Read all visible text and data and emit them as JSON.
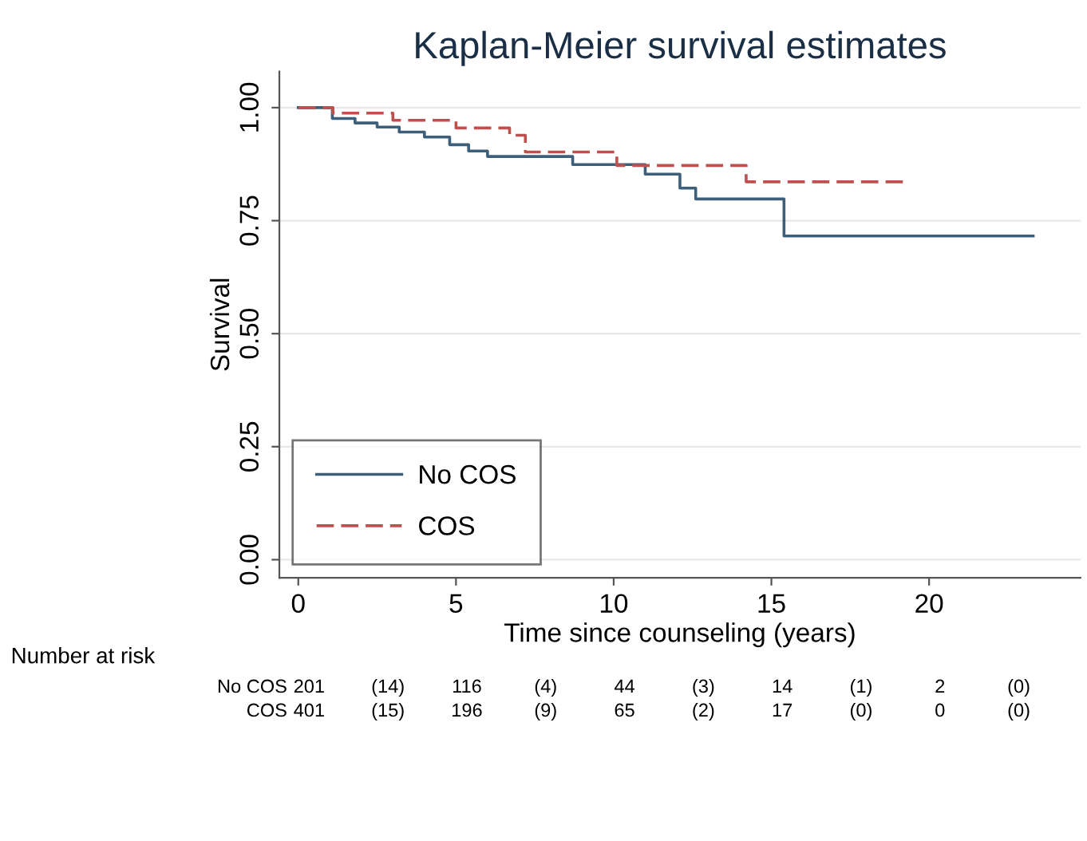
{
  "chart_data": {
    "type": "step",
    "title": "Kaplan-Meier survival estimates",
    "xlabel": "Time since counseling (years)",
    "ylabel": "Survival",
    "xlim": [
      -0.6,
      24.8
    ],
    "xticks": [
      0,
      5,
      10,
      15,
      20
    ],
    "ylim": [
      -0.04,
      1.08
    ],
    "yticks": [
      {
        "value": 0,
        "label": "0.00"
      },
      {
        "value": 0.25,
        "label": "0.25"
      },
      {
        "value": 0.5,
        "label": "0.50"
      },
      {
        "value": 0.75,
        "label": "0.75"
      },
      {
        "value": 1,
        "label": "1.00"
      }
    ],
    "grid": "y",
    "legend": "bottom left",
    "series": [
      {
        "name": "No COS",
        "color": "#3e5f7a",
        "line_style": "solid",
        "x": [
          0,
          1.08,
          1.8,
          2.5,
          3.2,
          4.0,
          4.8,
          5.4,
          6.0,
          8.7,
          11.0,
          12.1,
          12.6,
          15.4,
          23.3
        ],
        "values": [
          1,
          0.976,
          0.966,
          0.957,
          0.946,
          0.935,
          0.918,
          0.904,
          0.892,
          0.874,
          0.853,
          0.822,
          0.798,
          0.716,
          0.716
        ]
      },
      {
        "name": "COS",
        "color": "#c0504d",
        "line_style": "dashed",
        "x": [
          0,
          1.1,
          3.0,
          5.0,
          6.7,
          7.2,
          10.1,
          14.2,
          19.3
        ],
        "values": [
          1,
          0.988,
          0.972,
          0.955,
          0.939,
          0.902,
          0.872,
          0.836,
          0.836
        ]
      }
    ],
    "annotations": [
      "Number at risk",
      "No COS",
      "201",
      "(14)",
      "116",
      "(4)",
      "44",
      "(3)",
      "14",
      "(1)",
      "2",
      "(0)",
      "COS",
      "401",
      "(15)",
      "196",
      "(9)",
      "65",
      "(2)",
      "17",
      "(0)",
      "0",
      "(0)"
    ]
  }
}
